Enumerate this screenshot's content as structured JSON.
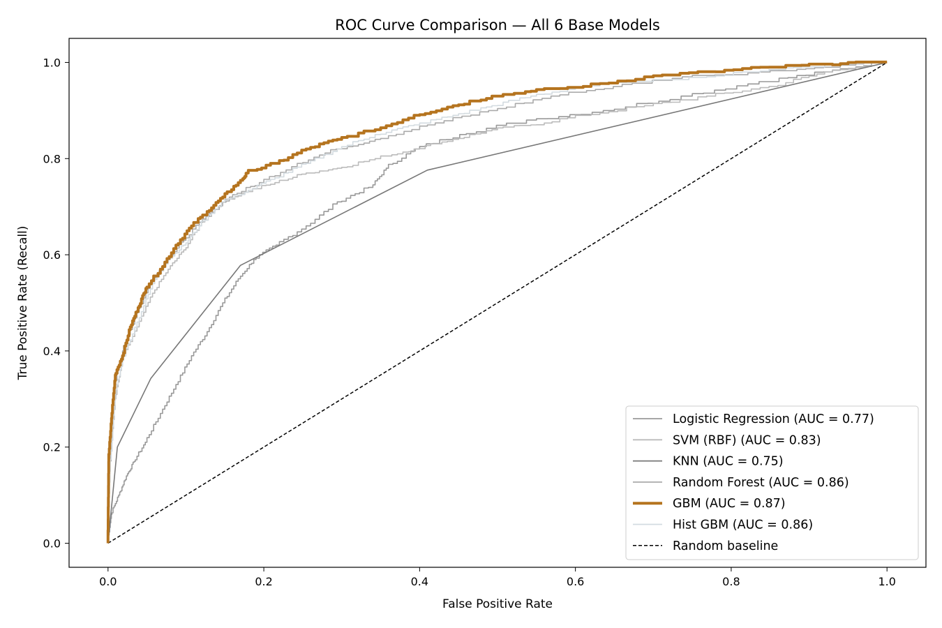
{
  "chart_data": {
    "type": "line",
    "title": "ROC Curve Comparison — All 6 Base Models",
    "xlabel": "False Positive Rate",
    "ylabel": "True Positive Rate (Recall)",
    "xlim": [
      -0.05,
      1.05
    ],
    "ylim": [
      -0.05,
      1.05
    ],
    "xticks": [
      0.0,
      0.2,
      0.4,
      0.6,
      0.8,
      1.0
    ],
    "yticks": [
      0.0,
      0.2,
      0.4,
      0.6,
      0.8,
      1.0
    ],
    "tick_labels_x": [
      "0.0",
      "0.2",
      "0.4",
      "0.6",
      "0.8",
      "1.0"
    ],
    "tick_labels_y": [
      "0.0",
      "0.2",
      "0.4",
      "0.6",
      "0.8",
      "1.0"
    ],
    "grid": false,
    "legend_position": "lower right",
    "series": [
      {
        "name": "Logistic Regression (AUC = 0.77)",
        "color": "#999999",
        "points": [
          [
            0,
            0
          ],
          [
            0.005,
            0.06
          ],
          [
            0.015,
            0.1
          ],
          [
            0.025,
            0.14
          ],
          [
            0.035,
            0.17
          ],
          [
            0.05,
            0.21
          ],
          [
            0.07,
            0.27
          ],
          [
            0.09,
            0.33
          ],
          [
            0.11,
            0.39
          ],
          [
            0.13,
            0.44
          ],
          [
            0.15,
            0.5
          ],
          [
            0.17,
            0.55
          ],
          [
            0.19,
            0.59
          ],
          [
            0.22,
            0.62
          ],
          [
            0.26,
            0.66
          ],
          [
            0.3,
            0.71
          ],
          [
            0.34,
            0.74
          ],
          [
            0.36,
            0.78
          ],
          [
            0.4,
            0.82
          ],
          [
            0.46,
            0.85
          ],
          [
            0.55,
            0.88
          ],
          [
            0.65,
            0.9
          ],
          [
            0.75,
            0.93
          ],
          [
            0.85,
            0.96
          ],
          [
            0.93,
            0.98
          ],
          [
            1.0,
            1.0
          ]
        ]
      },
      {
        "name": "SVM (RBF) (AUC = 0.83)",
        "color": "#bbbbbb",
        "points": [
          [
            0,
            0
          ],
          [
            0.003,
            0.15
          ],
          [
            0.01,
            0.3
          ],
          [
            0.02,
            0.38
          ],
          [
            0.04,
            0.45
          ],
          [
            0.06,
            0.52
          ],
          [
            0.08,
            0.57
          ],
          [
            0.1,
            0.61
          ],
          [
            0.12,
            0.66
          ],
          [
            0.15,
            0.71
          ],
          [
            0.18,
            0.73
          ],
          [
            0.22,
            0.75
          ],
          [
            0.26,
            0.77
          ],
          [
            0.3,
            0.78
          ],
          [
            0.35,
            0.8
          ],
          [
            0.4,
            0.82
          ],
          [
            0.45,
            0.84
          ],
          [
            0.5,
            0.86
          ],
          [
            0.55,
            0.87
          ],
          [
            0.62,
            0.89
          ],
          [
            0.7,
            0.91
          ],
          [
            0.78,
            0.93
          ],
          [
            0.86,
            0.95
          ],
          [
            0.93,
            0.98
          ],
          [
            1.0,
            1.0
          ]
        ]
      },
      {
        "name": "KNN (AUC = 0.75)",
        "color": "#777777",
        "points": [
          [
            0,
            0
          ],
          [
            0.012,
            0.2
          ],
          [
            0.055,
            0.343
          ],
          [
            0.17,
            0.578
          ],
          [
            0.41,
            0.776
          ],
          [
            1.0,
            1.0
          ]
        ]
      },
      {
        "name": "Random Forest (AUC = 0.86)",
        "color": "#aaaaaa",
        "points": [
          [
            0,
            0
          ],
          [
            0.003,
            0.16
          ],
          [
            0.01,
            0.33
          ],
          [
            0.02,
            0.4
          ],
          [
            0.04,
            0.48
          ],
          [
            0.06,
            0.55
          ],
          [
            0.08,
            0.59
          ],
          [
            0.1,
            0.63
          ],
          [
            0.13,
            0.68
          ],
          [
            0.16,
            0.72
          ],
          [
            0.2,
            0.75
          ],
          [
            0.25,
            0.79
          ],
          [
            0.3,
            0.82
          ],
          [
            0.35,
            0.84
          ],
          [
            0.42,
            0.87
          ],
          [
            0.5,
            0.9
          ],
          [
            0.58,
            0.93
          ],
          [
            0.66,
            0.95
          ],
          [
            0.75,
            0.97
          ],
          [
            0.85,
            0.98
          ],
          [
            0.93,
            0.99
          ],
          [
            1.0,
            1.0
          ]
        ]
      },
      {
        "name": "GBM (AUC = 0.87)",
        "color": "#b5741f",
        "points": [
          [
            0,
            0
          ],
          [
            0.001,
            0.17
          ],
          [
            0.005,
            0.26
          ],
          [
            0.01,
            0.35
          ],
          [
            0.02,
            0.39
          ],
          [
            0.03,
            0.45
          ],
          [
            0.04,
            0.49
          ],
          [
            0.05,
            0.53
          ],
          [
            0.07,
            0.57
          ],
          [
            0.09,
            0.62
          ],
          [
            0.11,
            0.66
          ],
          [
            0.13,
            0.69
          ],
          [
            0.15,
            0.72
          ],
          [
            0.17,
            0.75
          ],
          [
            0.18,
            0.77
          ],
          [
            0.22,
            0.79
          ],
          [
            0.26,
            0.82
          ],
          [
            0.3,
            0.84
          ],
          [
            0.35,
            0.86
          ],
          [
            0.4,
            0.89
          ],
          [
            0.45,
            0.91
          ],
          [
            0.5,
            0.93
          ],
          [
            0.55,
            0.94
          ],
          [
            0.62,
            0.95
          ],
          [
            0.7,
            0.97
          ],
          [
            0.78,
            0.98
          ],
          [
            0.86,
            0.99
          ],
          [
            0.93,
            0.995
          ],
          [
            1.0,
            1.0
          ]
        ]
      },
      {
        "name": "Hist GBM (AUC = 0.86)",
        "color": "#d3dbe0",
        "points": [
          [
            0,
            0
          ],
          [
            0.003,
            0.15
          ],
          [
            0.01,
            0.31
          ],
          [
            0.02,
            0.38
          ],
          [
            0.04,
            0.46
          ],
          [
            0.06,
            0.54
          ],
          [
            0.08,
            0.59
          ],
          [
            0.1,
            0.62
          ],
          [
            0.12,
            0.66
          ],
          [
            0.15,
            0.71
          ],
          [
            0.18,
            0.73
          ],
          [
            0.22,
            0.76
          ],
          [
            0.26,
            0.79
          ],
          [
            0.3,
            0.82
          ],
          [
            0.35,
            0.85
          ],
          [
            0.4,
            0.87
          ],
          [
            0.45,
            0.89
          ],
          [
            0.5,
            0.91
          ],
          [
            0.55,
            0.93
          ],
          [
            0.62,
            0.95
          ],
          [
            0.7,
            0.96
          ],
          [
            0.78,
            0.97
          ],
          [
            0.86,
            0.985
          ],
          [
            0.93,
            0.995
          ],
          [
            1.0,
            1.0
          ]
        ]
      },
      {
        "name": "Random baseline",
        "color": "#000000",
        "dashed": true,
        "points": [
          [
            0,
            0
          ],
          [
            1,
            1
          ]
        ]
      }
    ]
  }
}
